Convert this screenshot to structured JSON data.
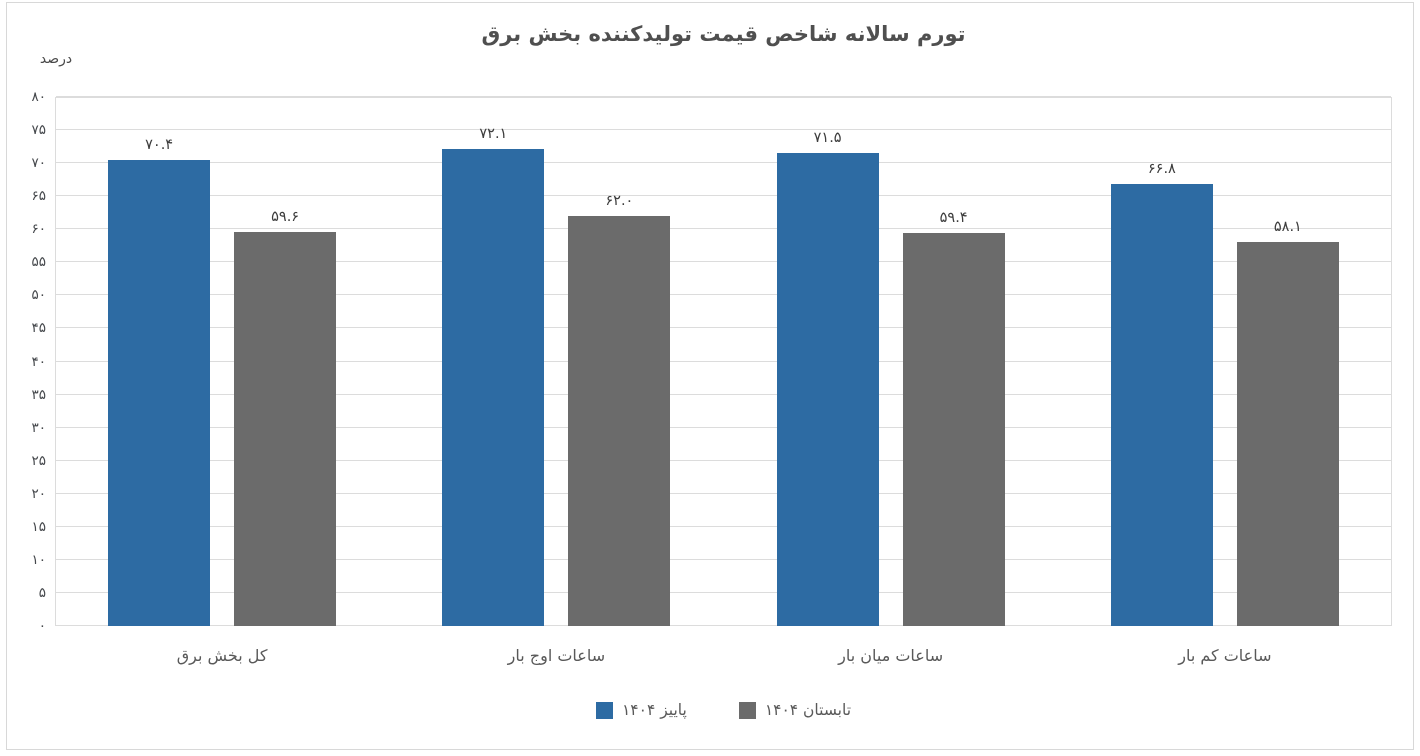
{
  "chart_data": {
    "type": "bar",
    "title": "تورم سالانه شاخص قیمت تولیدکننده بخش برق",
    "ylabel": "درصد",
    "xlabel": "",
    "ylim": [
      0,
      80
    ],
    "ytick_step": 5,
    "ytick_labels": [
      "۰",
      "۵",
      "۱۰",
      "۱۵",
      "۲۰",
      "۲۵",
      "۳۰",
      "۳۵",
      "۴۰",
      "۴۵",
      "۵۰",
      "۵۵",
      "۶۰",
      "۶۵",
      "۷۰",
      "۷۵",
      "۸۰"
    ],
    "categories": [
      "کل بخش برق",
      "ساعات اوج بار",
      "ساعات میان بار",
      "ساعات کم بار"
    ],
    "series": [
      {
        "name": "پاییز ۱۴۰۴",
        "color": "#2d6ba3",
        "values": [
          70.4,
          72.1,
          71.5,
          66.8
        ],
        "value_labels": [
          "۷۰.۴",
          "۷۲.۱",
          "۷۱.۵",
          "۶۶.۸"
        ]
      },
      {
        "name": "تابستان ۱۴۰۴",
        "color": "#6b6b6b",
        "values": [
          59.6,
          62.0,
          59.4,
          58.1
        ],
        "value_labels": [
          "۵۹.۶",
          "۶۲.۰",
          "۵۹.۴",
          "۵۸.۱"
        ]
      }
    ],
    "legend_position": "bottom-center",
    "grid": true
  },
  "colors": {
    "series_autumn": "#2d6ba3",
    "series_summer": "#6b6b6b",
    "gridline": "#dcdcdc",
    "frame_border": "#d8d8d8",
    "title_text": "#4f4f4f",
    "axis_text": "#595959",
    "tick_text": "#45484c",
    "value_label_text": "#3d3d3d"
  }
}
